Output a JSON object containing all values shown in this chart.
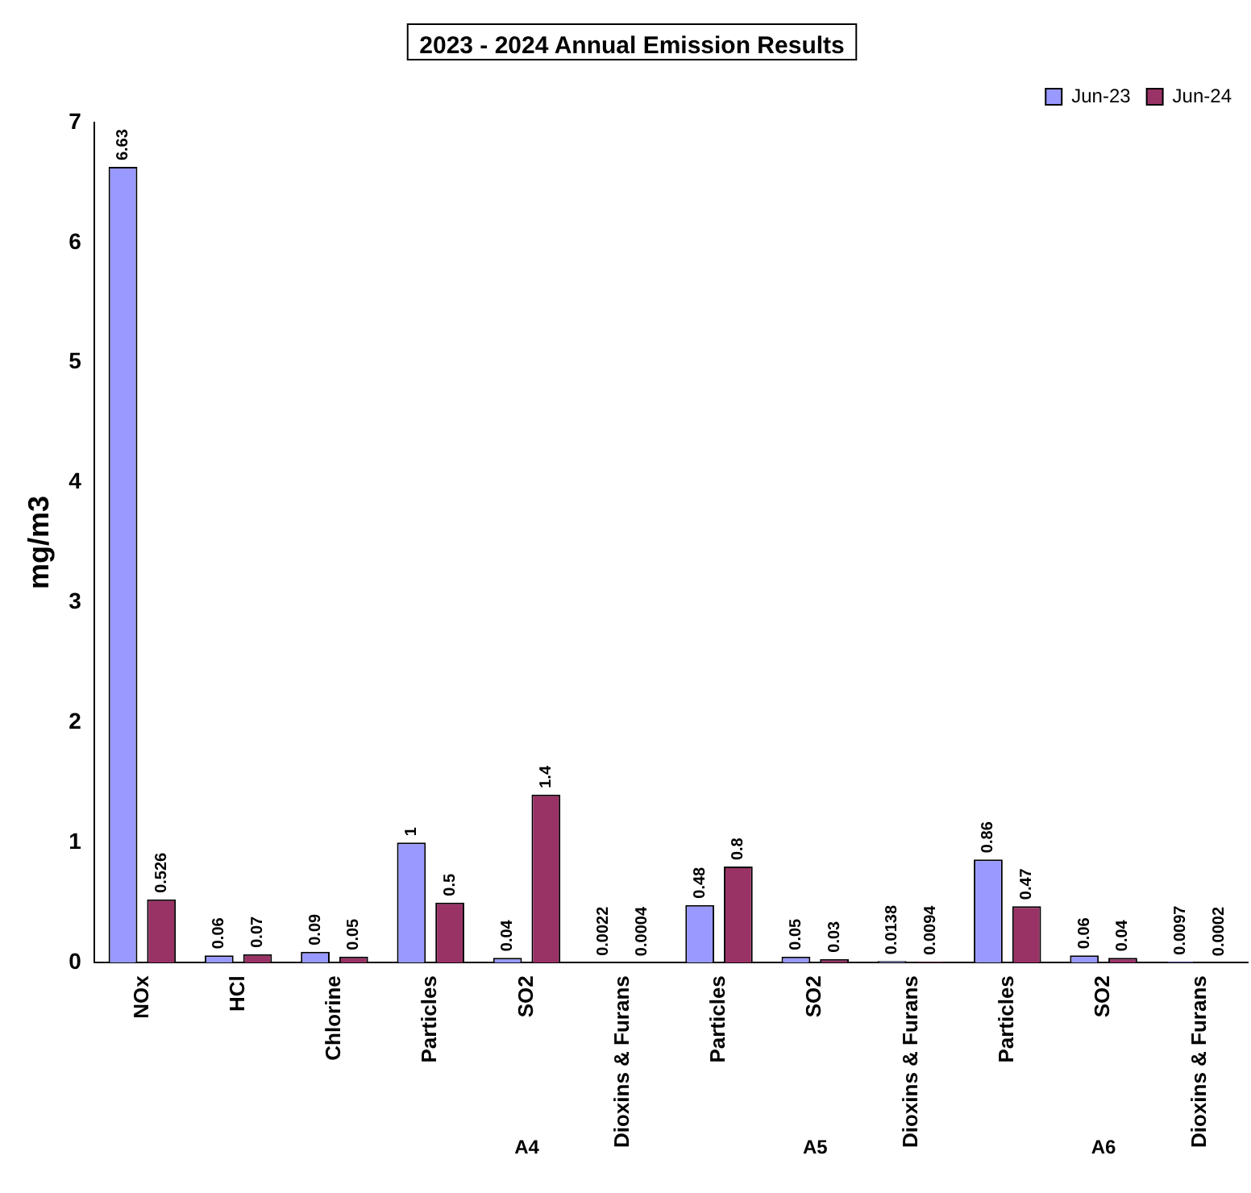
{
  "chart_data": {
    "type": "bar",
    "title": "2023 - 2024 Annual Emission Results",
    "ylabel": "mg/m3",
    "categories": [
      "NOx",
      "HCl",
      "Chlorine",
      "Particles",
      "SO2",
      "Dioxins & Furans",
      "Particles",
      "SO2",
      "Dioxins & Furans",
      "Particles",
      "SO2",
      "Dioxins & Furans"
    ],
    "series": [
      {
        "name": "Jun-23",
        "color": "#9999ff",
        "values": [
          6.63,
          0.06,
          0.09,
          1,
          0.04,
          0.0022,
          0.48,
          0.05,
          0.0138,
          0.86,
          0.06,
          0.0097
        ]
      },
      {
        "name": "Jun-24",
        "color": "#993366",
        "values": [
          0.526,
          0.07,
          0.05,
          0.5,
          1.4,
          0.0004,
          0.8,
          0.03,
          0.0094,
          0.47,
          0.04,
          0.0002
        ]
      }
    ],
    "ylim": [
      0,
      7
    ],
    "yticks": [
      0,
      1,
      2,
      3,
      4,
      5,
      6,
      7
    ],
    "grid": false,
    "legend": "top right",
    "data_labels": true,
    "annotations": [
      "A4",
      "A5",
      "A6"
    ]
  }
}
